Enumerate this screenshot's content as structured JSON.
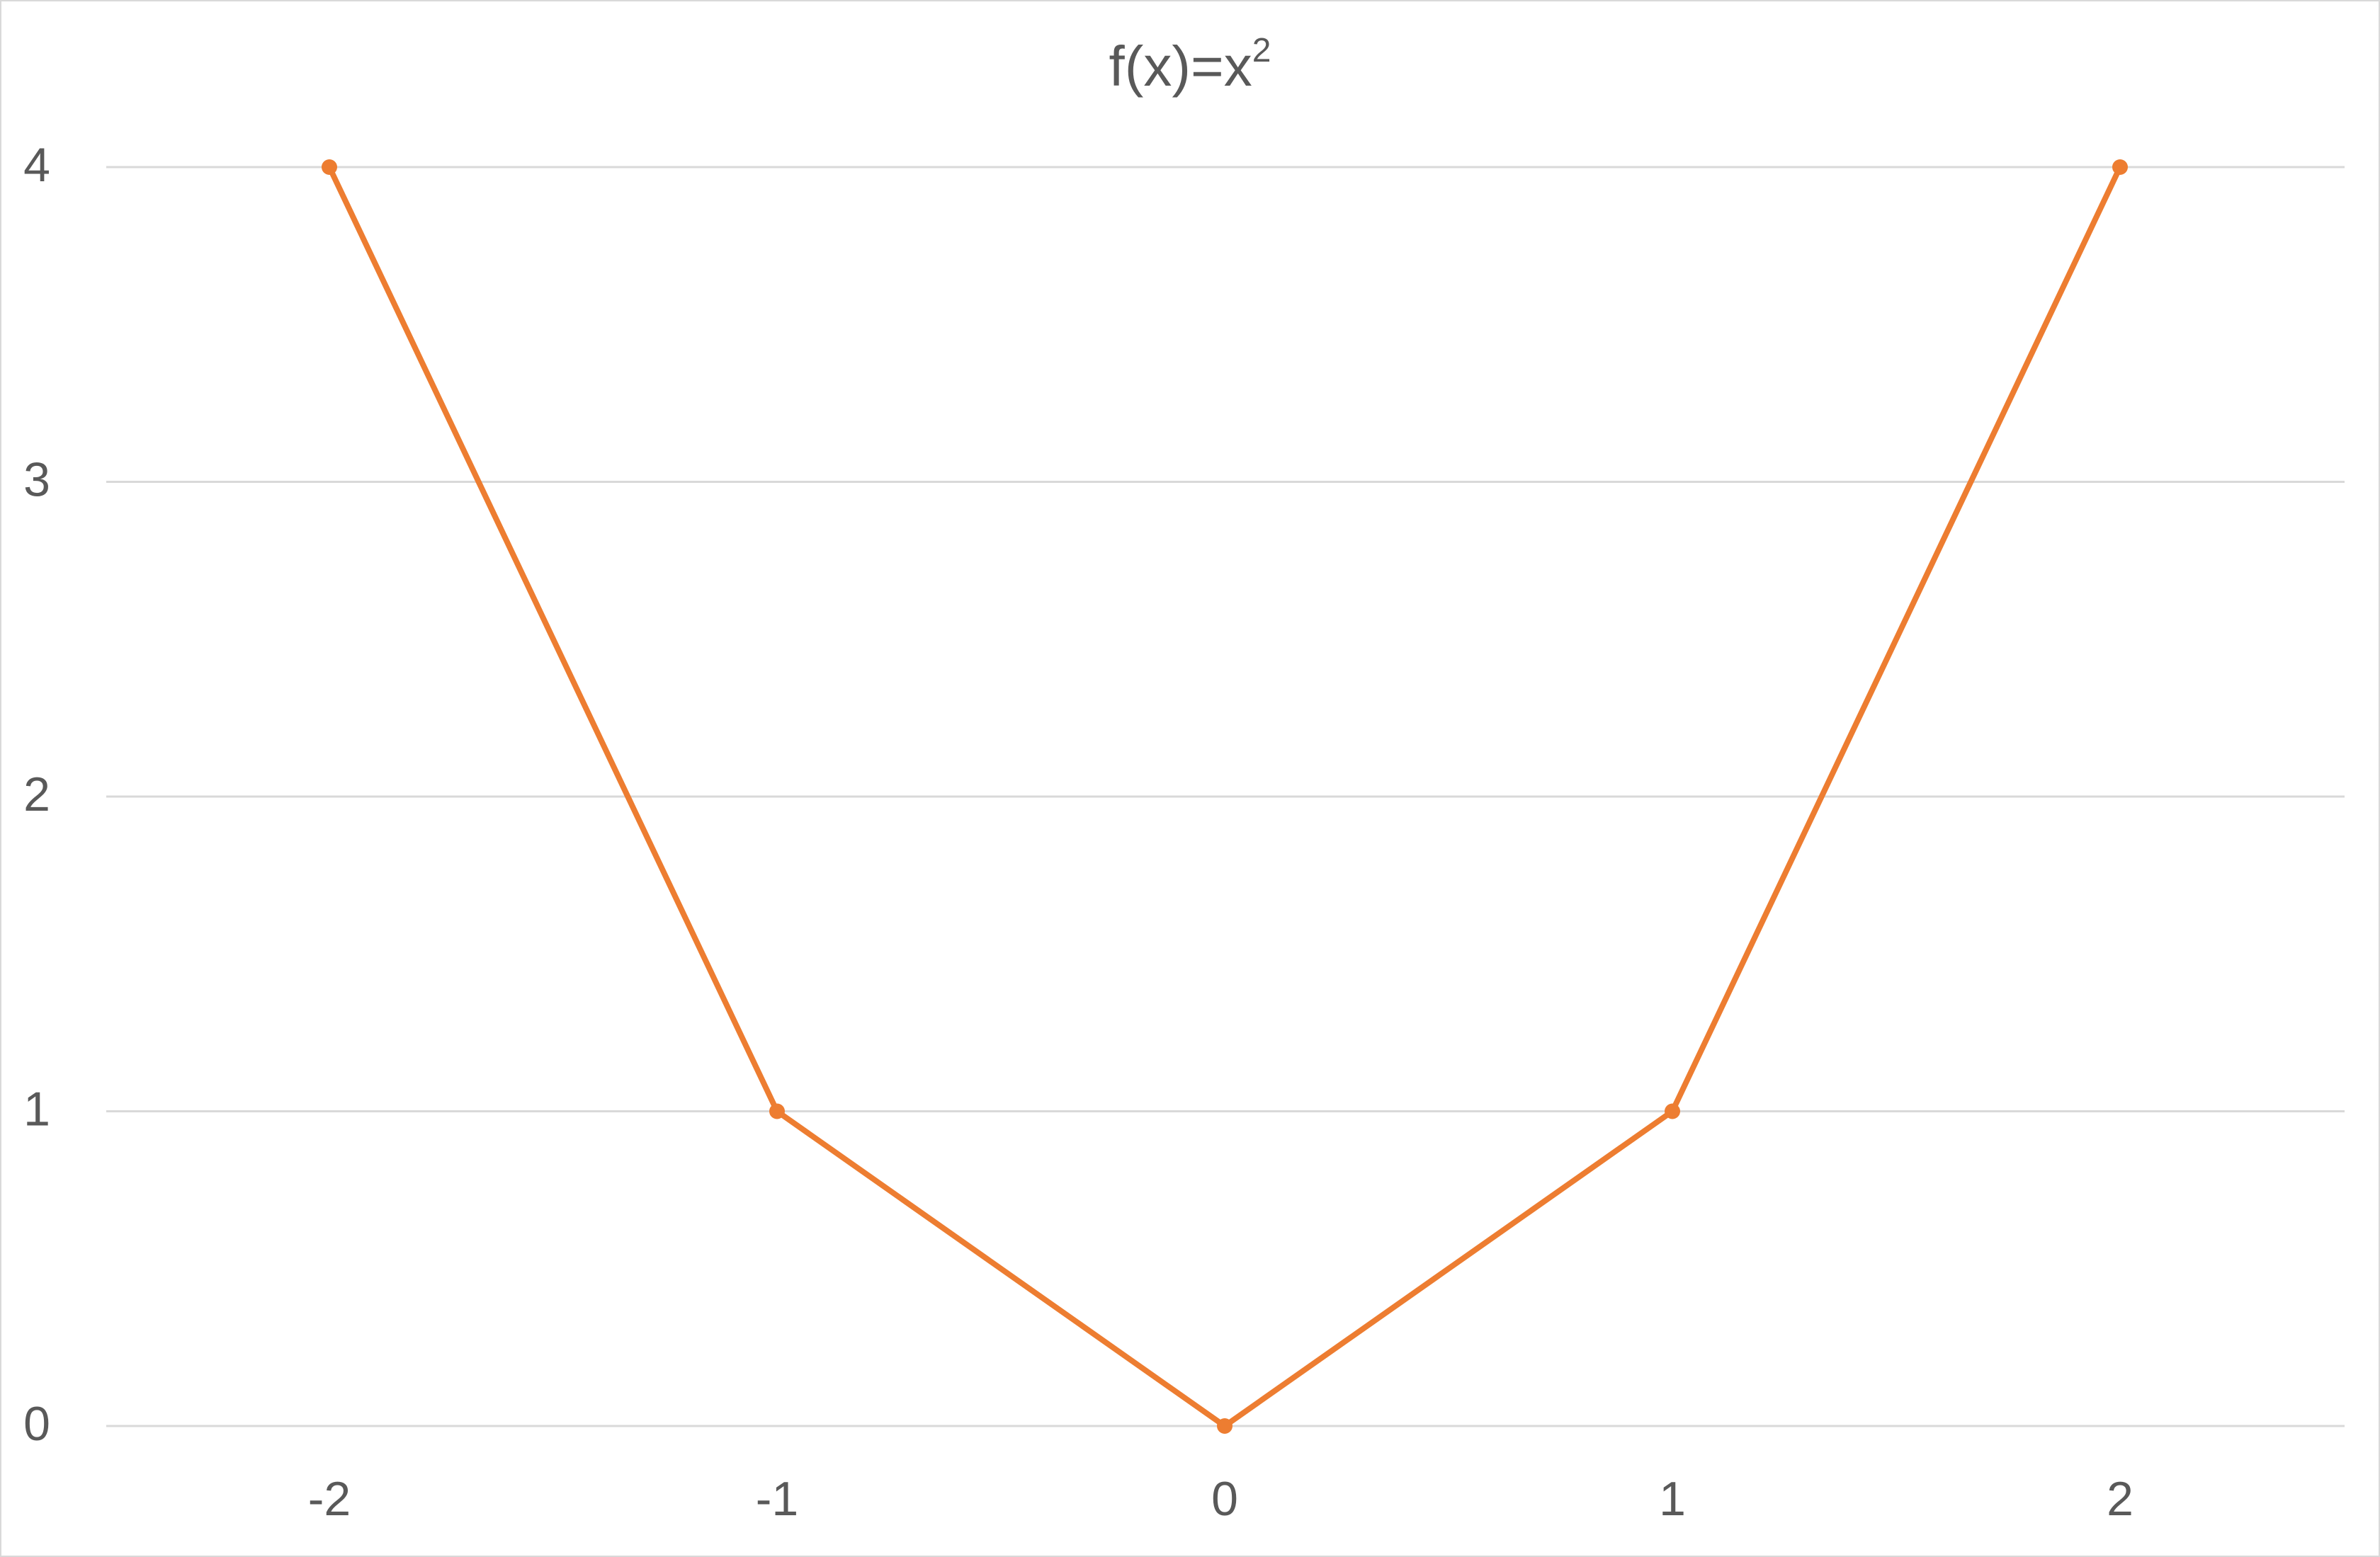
{
  "chart_data": {
    "type": "line",
    "title": {
      "base": "f(x)=x",
      "superscript": "2"
    },
    "categories": [
      "-2",
      "-1",
      "0",
      "1",
      "2"
    ],
    "series": [
      {
        "values": [
          4,
          1,
          0,
          1,
          4
        ],
        "color": "#ED7D31",
        "markers": true
      }
    ],
    "ylim": [
      0,
      4
    ],
    "yticks": [
      "0",
      "1",
      "2",
      "3",
      "4"
    ],
    "grid": "horizontal",
    "gridColor": "#d9d9d9",
    "legend": "none"
  }
}
